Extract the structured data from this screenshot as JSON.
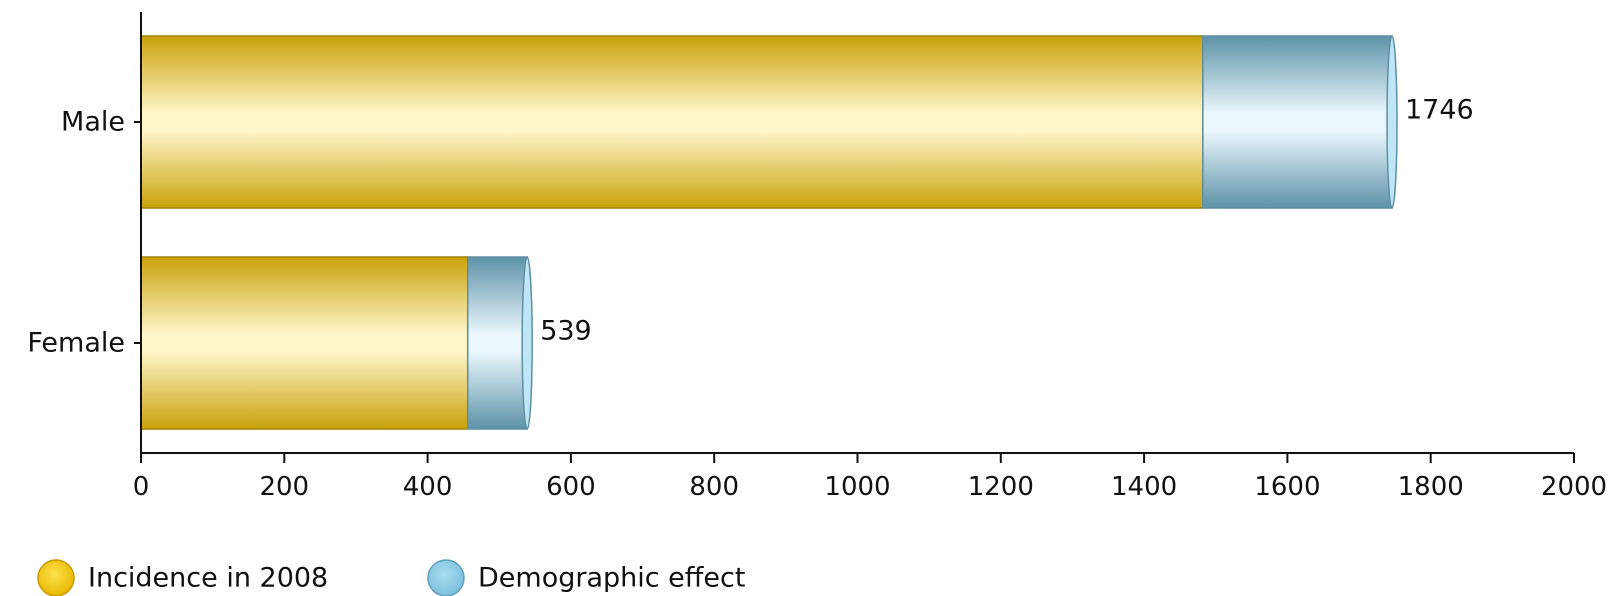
{
  "chart_data": {
    "type": "bar",
    "orientation": "horizontal",
    "stacked": true,
    "categories": [
      "Male",
      "Female"
    ],
    "series": [
      {
        "name": "Incidence in 2008",
        "values": [
          1482,
          456
        ],
        "color": "#d4ac0d"
      },
      {
        "name": "Demographic effect",
        "values": [
          264,
          83
        ],
        "color": "#87c5e0"
      }
    ],
    "totals": [
      1746,
      539
    ],
    "xlim": [
      0,
      2000
    ],
    "xticks": [
      0,
      200,
      400,
      600,
      800,
      1000,
      1200,
      1400,
      1600,
      1800,
      2000
    ],
    "grid": false,
    "legend_position": "bottom-left"
  }
}
